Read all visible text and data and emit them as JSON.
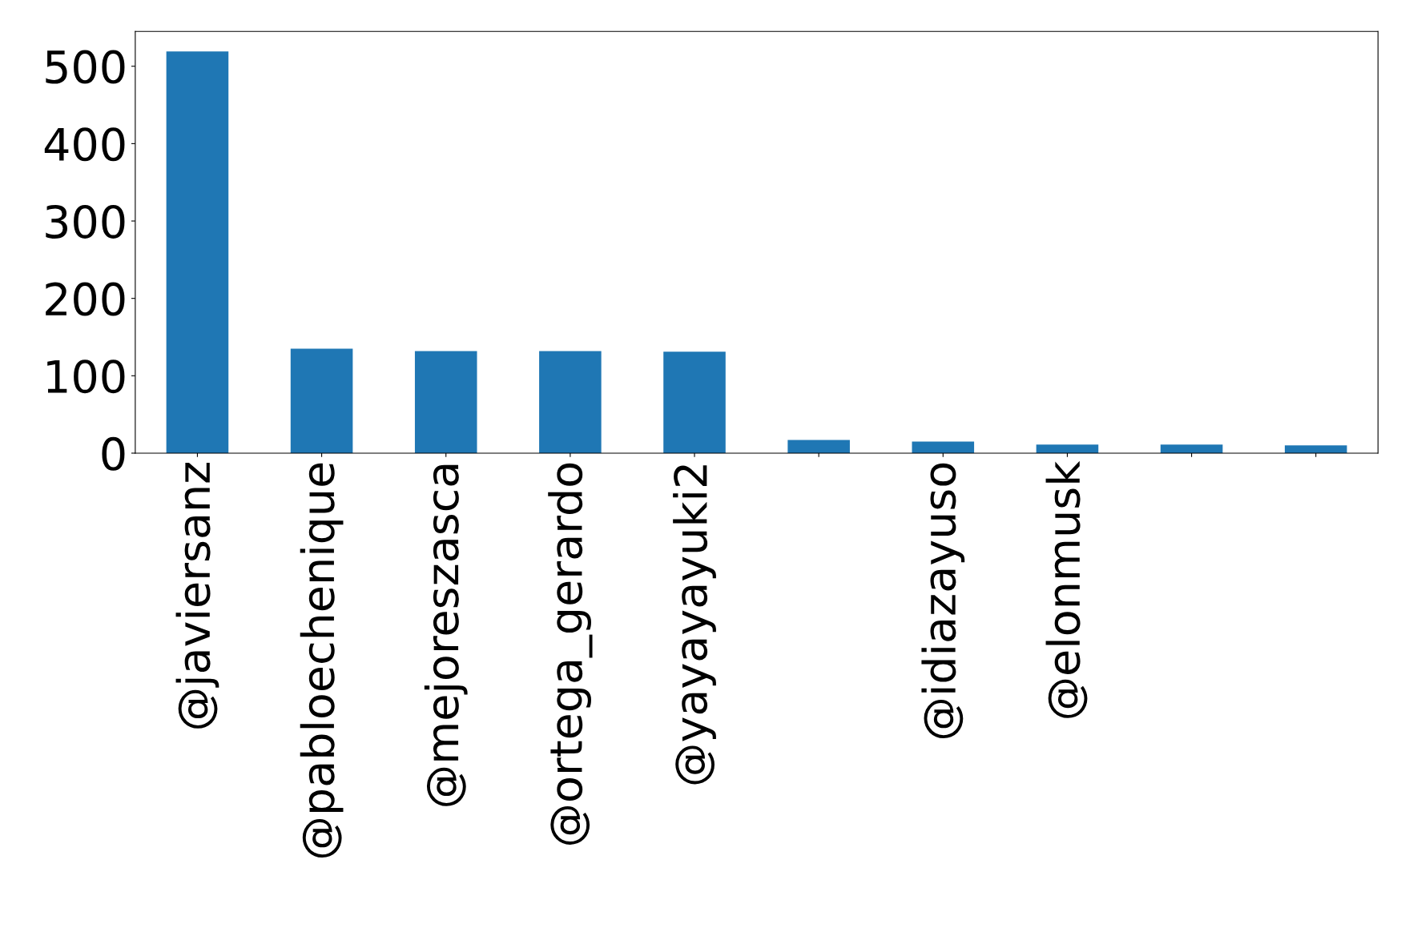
{
  "chart_data": {
    "type": "bar",
    "categories": [
      "@javiersanz",
      "@pabloechenique",
      "@mejoreszasca",
      "@ortega_gerardo",
      "@yayayayuki2",
      null,
      "@idiazayuso",
      "@elonmusk",
      null,
      null
    ],
    "values": [
      519,
      135,
      132,
      132,
      131,
      17,
      15,
      11,
      11,
      10
    ],
    "color": "#1f77b4",
    "ylim": [
      0,
      545
    ],
    "yticks": [
      0,
      100,
      200,
      300,
      400,
      500
    ],
    "grid": false
  }
}
